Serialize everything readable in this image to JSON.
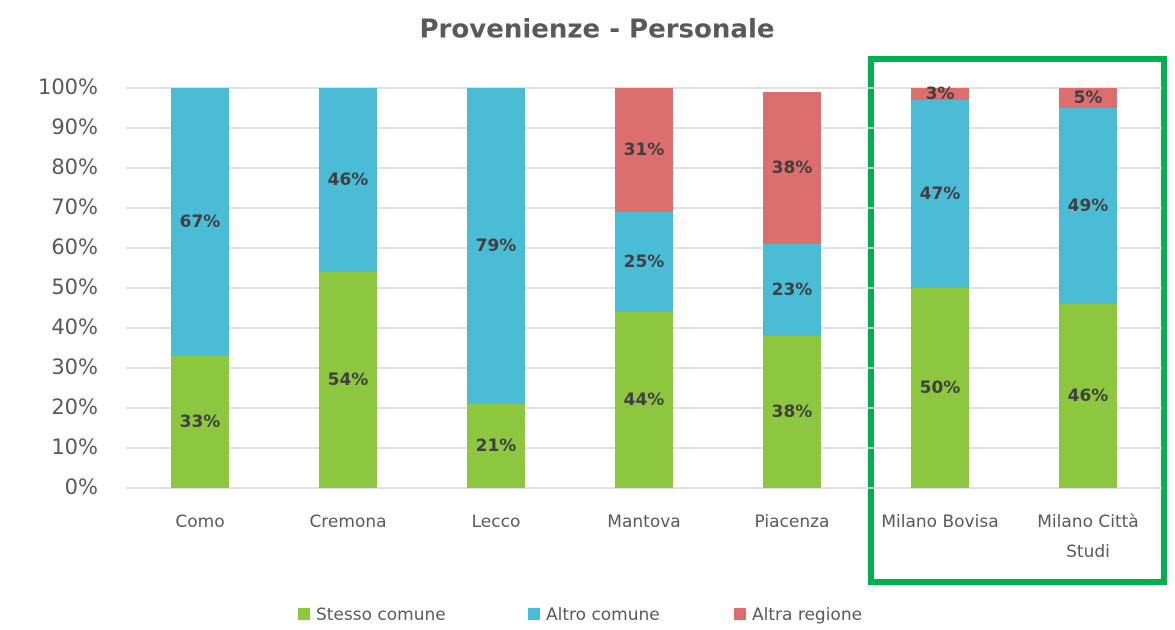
{
  "chart_data": {
    "type": "stacked_bar",
    "title": "Provenienze - Personale",
    "categories": [
      "Como",
      "Cremona",
      "Lecco",
      "Mantova",
      "Piacenza",
      "Milano Bovisa",
      "Milano Città Studi"
    ],
    "series": [
      {
        "name": "Stesso comune",
        "color": "#8dc63f",
        "values": [
          33,
          54,
          21,
          44,
          38,
          50,
          46
        ],
        "value_labels": [
          "33%",
          "54%",
          "21%",
          "44%",
          "38%",
          "50%",
          "46%"
        ]
      },
      {
        "name": "Altro comune",
        "color": "#4bbcd6",
        "values": [
          67,
          46,
          79,
          25,
          23,
          47,
          49
        ],
        "value_labels": [
          "67%",
          "46%",
          "79%",
          "25%",
          "23%",
          "47%",
          "49%"
        ]
      },
      {
        "name": "Altra regione",
        "color": "#dd6e6e",
        "values": [
          0,
          0,
          0,
          31,
          38,
          3,
          5
        ],
        "value_labels": [
          null,
          null,
          null,
          "31%",
          "38%",
          "3%",
          "5%"
        ]
      }
    ],
    "ylim": [
      0,
      100
    ],
    "yticks": [
      {
        "value": 0,
        "label": "0%"
      },
      {
        "value": 10,
        "label": "10%"
      },
      {
        "value": 20,
        "label": "20%"
      },
      {
        "value": 30,
        "label": "30%"
      },
      {
        "value": 40,
        "label": "40%"
      },
      {
        "value": 50,
        "label": "50%"
      },
      {
        "value": 60,
        "label": "60%"
      },
      {
        "value": 70,
        "label": "70%"
      },
      {
        "value": 80,
        "label": "80%"
      },
      {
        "value": 90,
        "label": "90%"
      },
      {
        "value": 100,
        "label": "100%"
      }
    ],
    "grid": true,
    "legend": "bottom"
  }
}
